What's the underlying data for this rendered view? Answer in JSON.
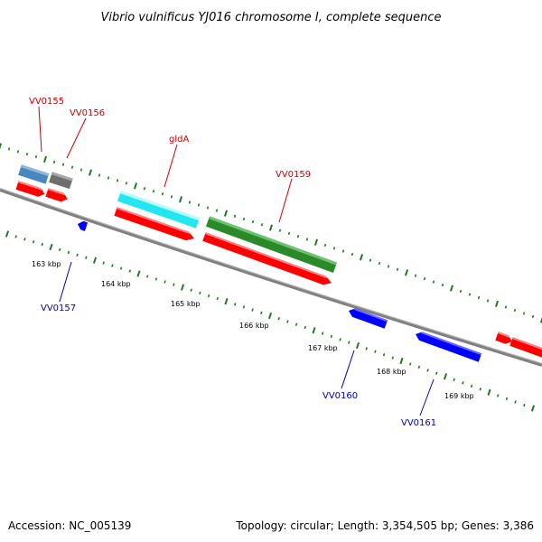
{
  "title": "Vibrio vulnificus YJ016 chromosome I, complete sequence",
  "accession": "Accession: NC_005139",
  "summary": "Topology: circular; Length: 3,354,505 bp; Genes: 3,386",
  "kbp_labels": [
    "163 kbp",
    "164 kbp",
    "165 kbp",
    "166 kbp",
    "167 kbp",
    "168 kbp",
    "169 kbp"
  ],
  "gene_labels": {
    "vv0155": "VV0155",
    "vv0156": "VV0156",
    "glda": "gldA",
    "vv0159": "VV0159",
    "vv0157": "VV0157",
    "vv0160": "VV0160",
    "vv0161": "VV0161"
  },
  "colors": {
    "forward_gene": "#ff0000",
    "reverse_gene": "#0000ff",
    "backbone": "#808080",
    "tick": "#1f7a1f",
    "cog_steelblue": "#4a86c0",
    "cog_gray": "#6e6e6e",
    "cog_cyan": "#22e6f0",
    "cog_green": "#2a8a2a"
  }
}
